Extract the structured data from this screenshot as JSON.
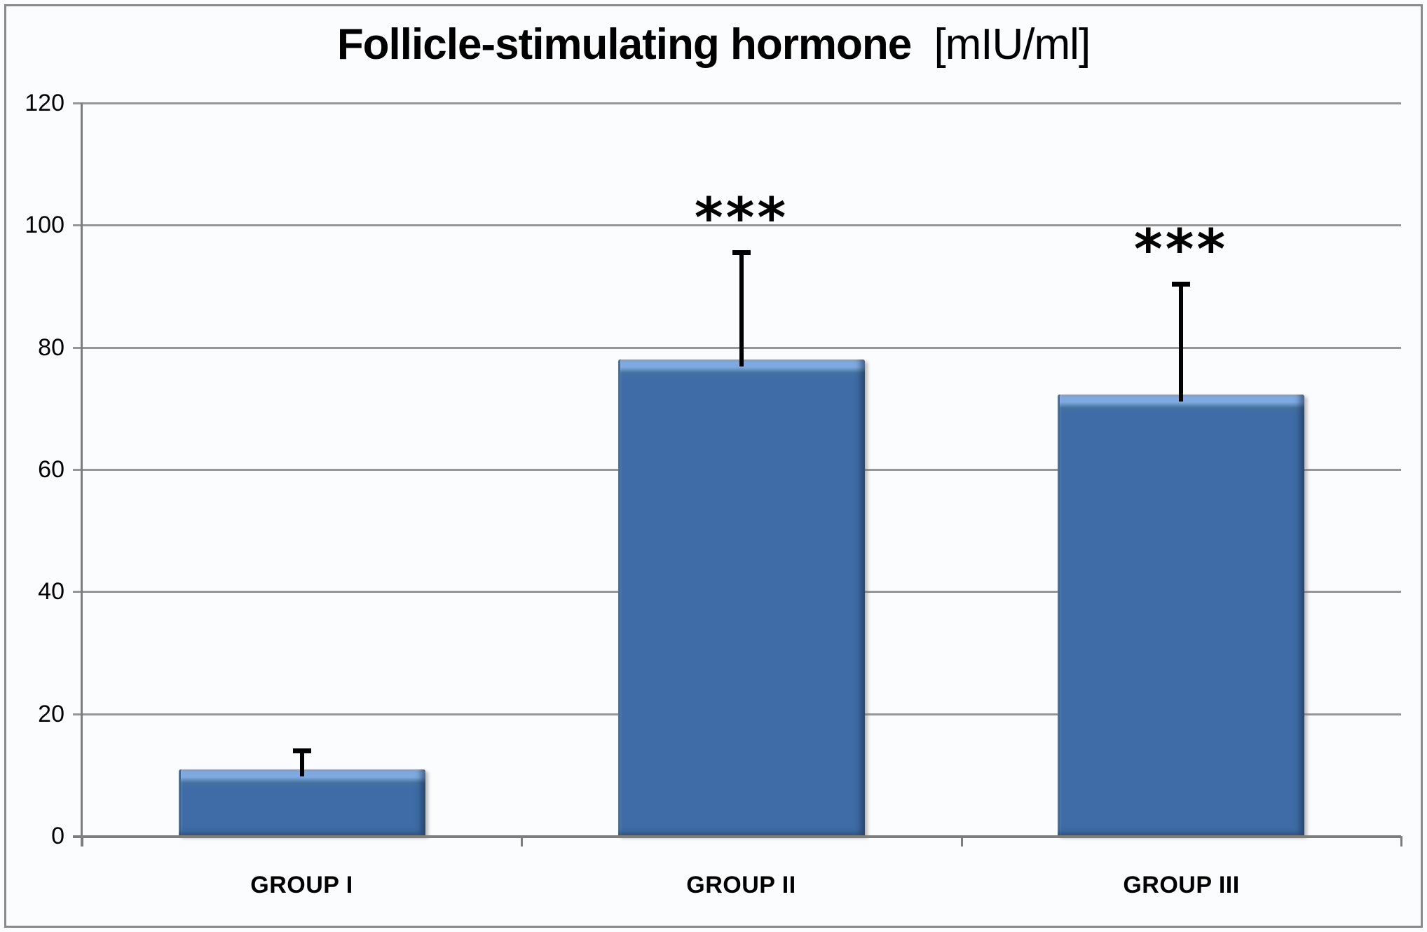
{
  "chart_data": {
    "type": "bar",
    "title": "Follicle-stimulating hormone",
    "title_unit": "[mIU/ml]",
    "categories": [
      "GROUP I",
      "GROUP II",
      "GROUP III"
    ],
    "values": [
      10.9,
      78,
      72.3
    ],
    "error_plus": [
      3.4,
      17.9,
      18.4
    ],
    "significance_labels": [
      "",
      "***",
      "***"
    ],
    "ylim": [
      0,
      120
    ],
    "ytick_step": 20,
    "yticks": [
      0,
      20,
      40,
      60,
      80,
      100,
      120
    ],
    "grid": true,
    "legend": "none",
    "colors": {
      "bar_fill": "#3F6CA6",
      "bar_highlight": "#7FA9E1",
      "bar_edge_dark": "#2C4F79",
      "gridline": "#969696",
      "axis": "#7D7D7D",
      "error_bar": "#000000",
      "text": "#000000",
      "frame_border": "#8A8A8A",
      "background": "#FBFCFE"
    }
  }
}
